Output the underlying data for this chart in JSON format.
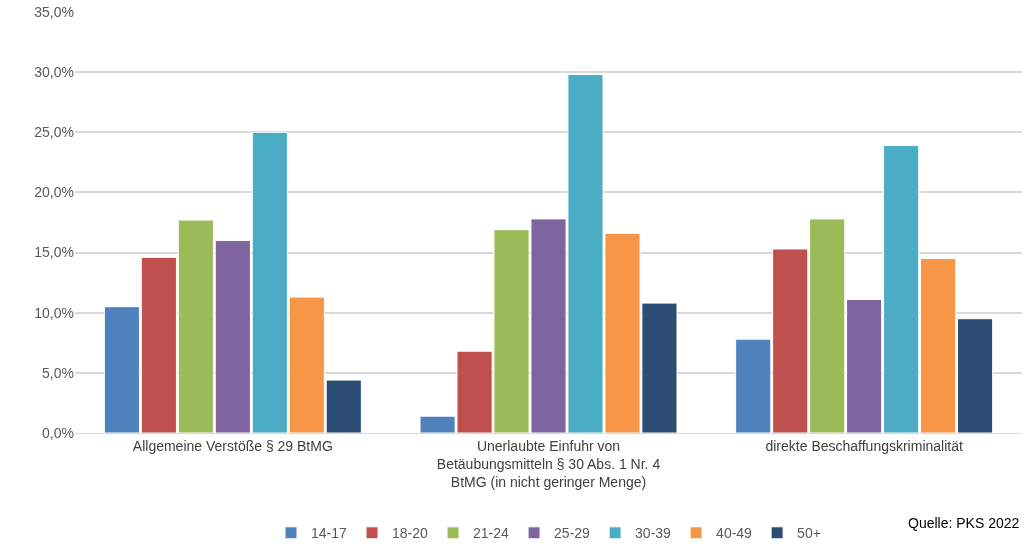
{
  "chart_data": {
    "type": "bar",
    "categories": [
      "Allgemeine Verstöße § 29 BtMG",
      "Unerlaubte Einfuhr von Betäubungsmitteln § 30 Abs. 1 Nr. 4 BtMG (in nicht geringer Menge)",
      "direkte Beschaffungskriminalität"
    ],
    "series": [
      {
        "name": "14-17",
        "color": "#4f81bd",
        "values": [
          10.5,
          1.4,
          7.8
        ]
      },
      {
        "name": "18-20",
        "color": "#c0504d",
        "values": [
          14.6,
          6.8,
          15.3
        ]
      },
      {
        "name": "21-24",
        "color": "#9bbb59",
        "values": [
          17.7,
          16.9,
          17.8
        ]
      },
      {
        "name": "25-29",
        "color": "#8064a2",
        "values": [
          16.0,
          17.8,
          11.1
        ]
      },
      {
        "name": "30-39",
        "color": "#4bacc6",
        "values": [
          25.0,
          29.8,
          23.9
        ]
      },
      {
        "name": "40-49",
        "color": "#f79646",
        "values": [
          11.3,
          16.6,
          14.5
        ]
      },
      {
        "name": "50+",
        "color": "#2c4d75",
        "values": [
          4.4,
          10.8,
          9.5
        ]
      }
    ],
    "ylim": [
      0,
      35
    ],
    "yticks": [
      {
        "value": 0,
        "label": "0,0%"
      },
      {
        "value": 5,
        "label": "5,0%"
      },
      {
        "value": 10,
        "label": "10,0%"
      },
      {
        "value": 15,
        "label": "15,0%"
      },
      {
        "value": 20,
        "label": "20,0%"
      },
      {
        "value": 25,
        "label": "25,0%"
      },
      {
        "value": 30,
        "label": "30,0%"
      },
      {
        "value": 35,
        "label": "35,0%"
      }
    ],
    "grid": "y",
    "legend": "bottom",
    "annotations": [
      "Quelle: PKS 2022"
    ]
  }
}
